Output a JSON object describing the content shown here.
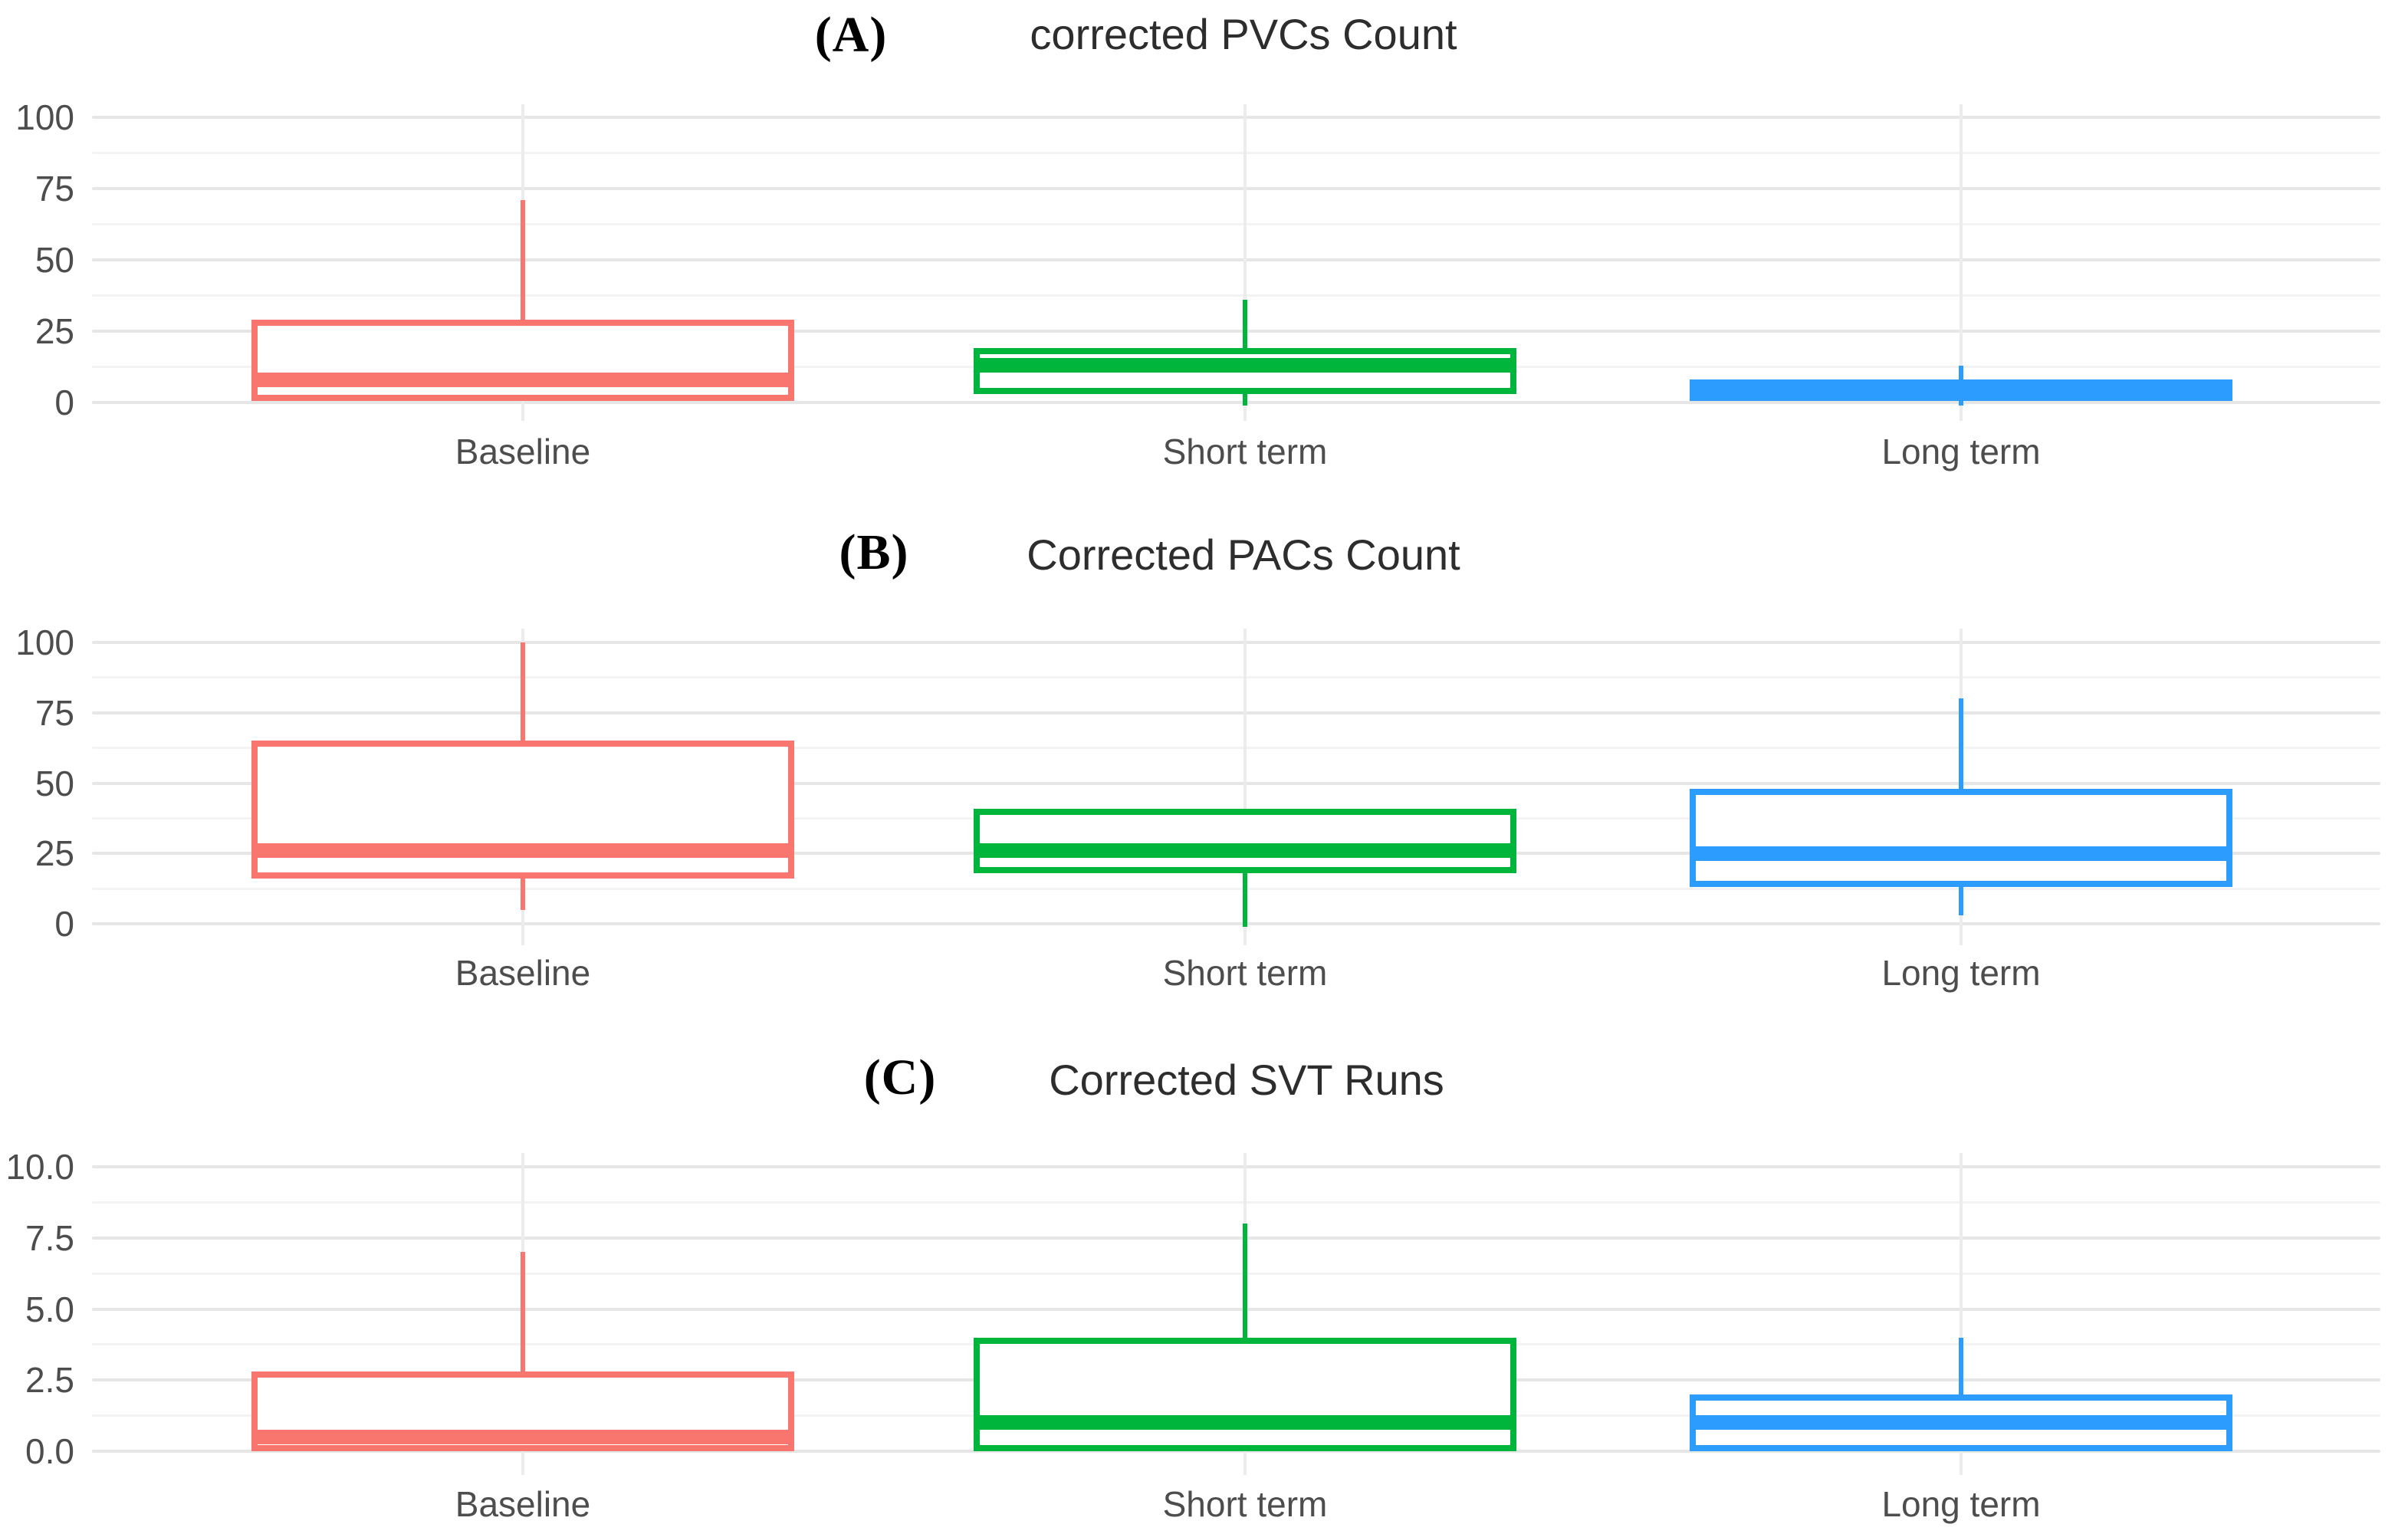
{
  "panels": [
    {
      "letter": "(A)",
      "title": "corrected PVCs Count"
    },
    {
      "letter": "(B)",
      "title": "Corrected PACs Count"
    },
    {
      "letter": "(C)",
      "title": "Corrected SVT Runs"
    }
  ],
  "colors": {
    "baseline": "#F8766D",
    "short_term": "#00B53C",
    "long_term": "#2D9CFF",
    "grid_major": "#e6e6e6",
    "grid_minor": "#f3f3f3",
    "axis_text": "#4d4d4d",
    "title_text": "#2d2d2d"
  },
  "chart_data": [
    {
      "type": "boxplot",
      "panel": "A",
      "title": "corrected PVCs Count",
      "ylim": [
        0,
        100
      ],
      "yticks": [
        100,
        75,
        50,
        25,
        0
      ],
      "ytick_labels": [
        "100",
        "75",
        "50",
        "25",
        "0"
      ],
      "categories": [
        "Baseline",
        "Short term",
        "Long term"
      ],
      "legend": "none",
      "grid": "horizontal major+minor, one vertical line per category",
      "series": [
        {
          "category": "Baseline",
          "color": "#F8766D",
          "whisker_low": 0.5,
          "q1": 0.5,
          "median": 8,
          "q3": 29,
          "whisker_high": 71
        },
        {
          "category": "Short term",
          "color": "#00B53C",
          "whisker_low": -1,
          "q1": 3,
          "median": 13,
          "q3": 19,
          "whisker_high": 36
        },
        {
          "category": "Long term",
          "color": "#2D9CFF",
          "whisker_low": -1,
          "q1": 0.5,
          "median": 5,
          "q3": 8,
          "whisker_high": 13
        }
      ]
    },
    {
      "type": "boxplot",
      "panel": "B",
      "title": "Corrected PACs Count",
      "ylim": [
        0,
        100
      ],
      "yticks": [
        100,
        75,
        50,
        25,
        0
      ],
      "ytick_labels": [
        "100",
        "75",
        "50",
        "25",
        "0"
      ],
      "categories": [
        "Baseline",
        "Short term",
        "Long term"
      ],
      "legend": "none",
      "grid": "horizontal major+minor, one vertical line per category",
      "series": [
        {
          "category": "Baseline",
          "color": "#F8766D",
          "whisker_low": 5,
          "q1": 16,
          "median": 26,
          "q3": 65,
          "whisker_high": 100
        },
        {
          "category": "Short term",
          "color": "#00B53C",
          "whisker_low": -1,
          "q1": 18,
          "median": 26,
          "q3": 41,
          "whisker_high": 41
        },
        {
          "category": "Long term",
          "color": "#2D9CFF",
          "whisker_low": 3,
          "q1": 13,
          "median": 25,
          "q3": 48,
          "whisker_high": 80
        }
      ]
    },
    {
      "type": "boxplot",
      "panel": "C",
      "title": "Corrected SVT Runs",
      "ylim": [
        0,
        10
      ],
      "yticks": [
        10,
        7.5,
        5,
        2.5,
        0
      ],
      "ytick_labels": [
        "10.0",
        "7.5",
        "5.0",
        "2.5",
        "0.0"
      ],
      "categories": [
        "Baseline",
        "Short term",
        "Long term"
      ],
      "legend": "none",
      "grid": "horizontal major+minor, one vertical line per category",
      "series": [
        {
          "category": "Baseline",
          "color": "#F8766D",
          "whisker_low": 0,
          "q1": 0,
          "median": 0.5,
          "q3": 2.8,
          "whisker_high": 7
        },
        {
          "category": "Short term",
          "color": "#00B53C",
          "whisker_low": 0,
          "q1": 0,
          "median": 1,
          "q3": 4,
          "whisker_high": 8
        },
        {
          "category": "Long term",
          "color": "#2D9CFF",
          "whisker_low": 0,
          "q1": 0,
          "median": 1,
          "q3": 2,
          "whisker_high": 4
        }
      ]
    }
  ]
}
